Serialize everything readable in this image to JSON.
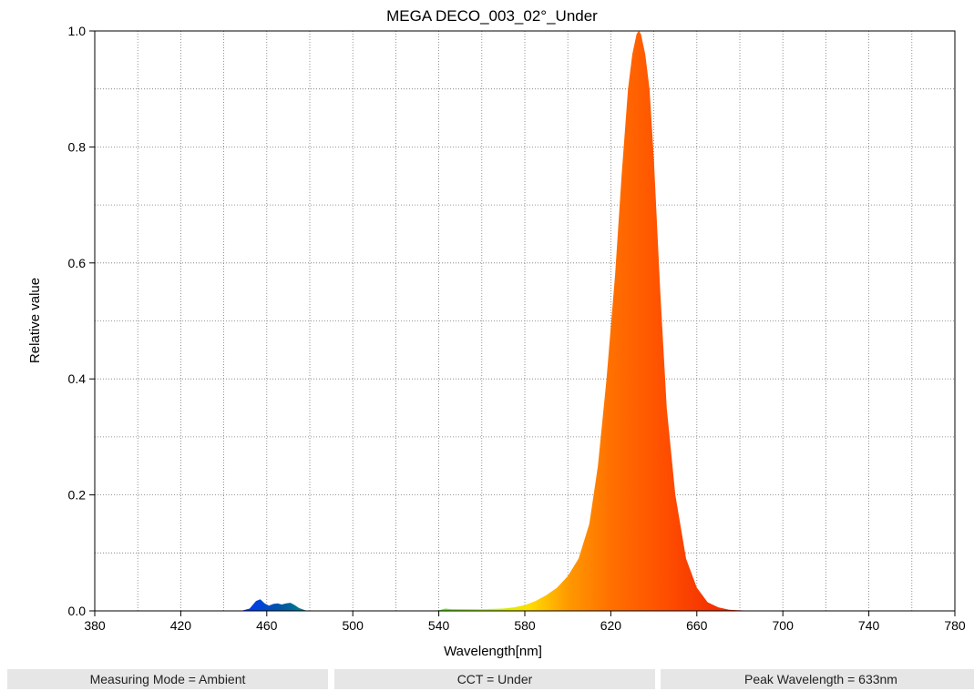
{
  "chart_data": {
    "type": "area",
    "title": "MEGA DECO_003_02°_Under",
    "xlabel": "Wavelength[nm]",
    "ylabel": "Relative value",
    "xlim": [
      380,
      780
    ],
    "ylim": [
      0,
      1.0
    ],
    "x_ticks": [
      380,
      420,
      460,
      500,
      540,
      580,
      620,
      660,
      700,
      740,
      780
    ],
    "x_tick_labels": [
      "380",
      "420",
      "460",
      "500",
      "540",
      "580",
      "620",
      "660",
      "700",
      "740",
      "780"
    ],
    "y_ticks": [
      0,
      0.2,
      0.4,
      0.6,
      0.8,
      1.0
    ],
    "y_tick_labels": [
      "0.0",
      "0.2",
      "0.4",
      "0.6",
      "0.8",
      "1.0"
    ],
    "grid": true,
    "fill": "spectral color gradient",
    "series": [
      {
        "x": [
          448,
          452,
          455,
          457,
          459,
          461,
          463,
          465,
          467,
          469,
          471,
          473,
          475,
          478,
          482,
          500,
          530,
          540,
          543,
          546,
          550,
          560,
          570,
          575,
          580,
          585,
          590,
          595,
          600,
          605,
          610,
          614,
          618,
          622,
          625,
          628,
          630,
          632,
          633,
          634,
          636,
          638,
          640,
          643,
          646,
          650,
          655,
          660,
          665,
          670,
          675,
          680,
          690,
          700,
          720,
          740,
          760,
          780
        ],
        "y": [
          0,
          0.004,
          0.017,
          0.02,
          0.013,
          0.009,
          0.012,
          0.013,
          0.011,
          0.013,
          0.014,
          0.01,
          0.005,
          0.001,
          0,
          0,
          0,
          0.001,
          0.004,
          0.003,
          0.003,
          0.003,
          0.004,
          0.006,
          0.01,
          0.017,
          0.027,
          0.04,
          0.06,
          0.09,
          0.15,
          0.25,
          0.4,
          0.58,
          0.75,
          0.9,
          0.96,
          0.995,
          1.0,
          0.995,
          0.96,
          0.9,
          0.78,
          0.55,
          0.35,
          0.2,
          0.09,
          0.04,
          0.015,
          0.006,
          0.002,
          0.001,
          0,
          0,
          0,
          0,
          0,
          0
        ]
      }
    ]
  },
  "status": {
    "measuring_mode": "Measuring Mode = Ambient",
    "cct": "CCT = Under",
    "peak_wavelength": "Peak Wavelength = 633nm"
  }
}
